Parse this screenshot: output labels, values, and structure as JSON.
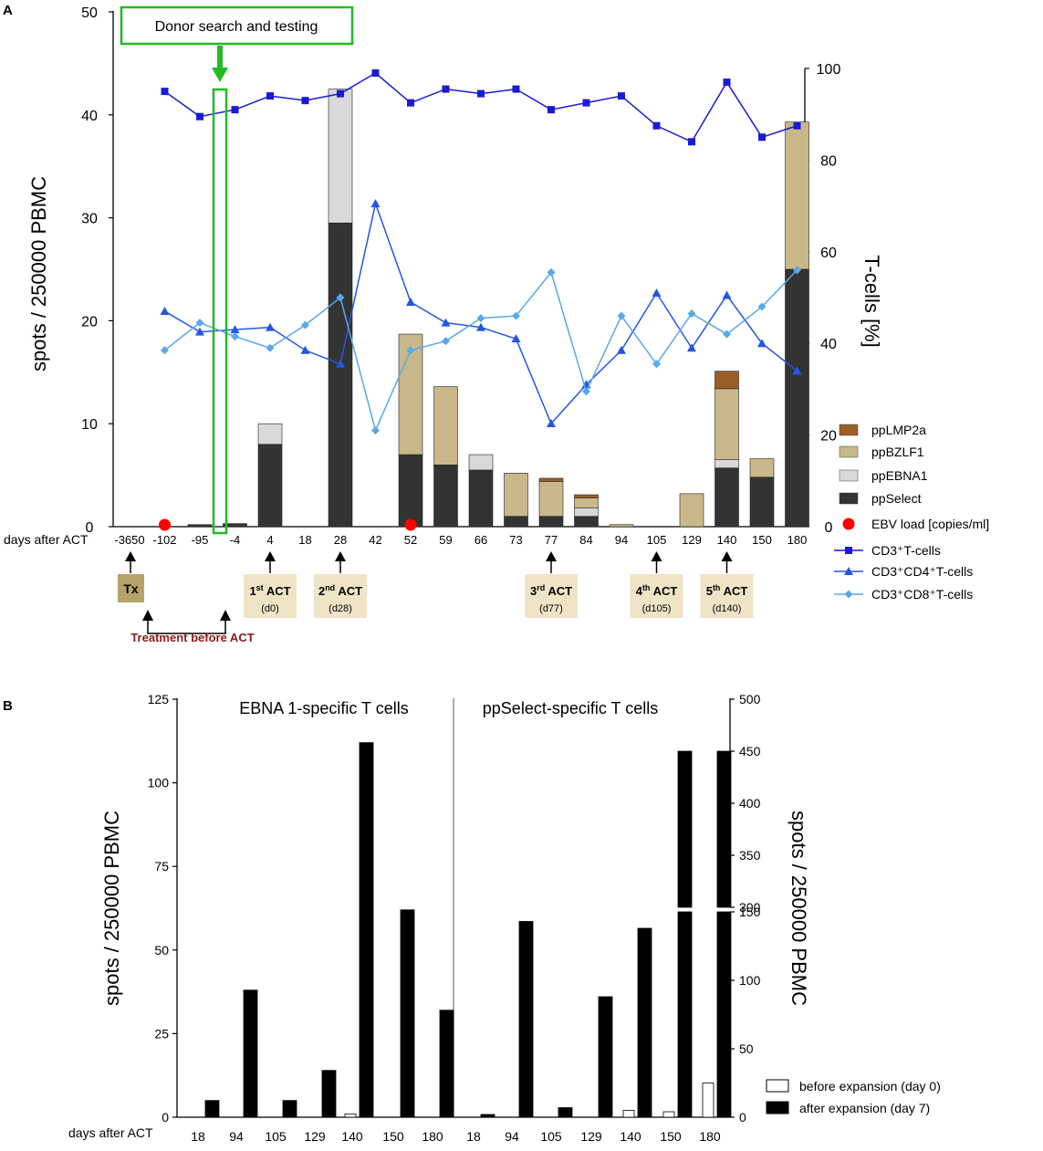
{
  "panel_a": {
    "label": "A",
    "left_axis_title": "spots / 250000 PBMC",
    "right_axis_title": "T-cells [%]",
    "x_label": "days after ACT",
    "donor_box_text": "Donor search and testing",
    "tx_label": "Tx",
    "treatment_label": "Treatment before ACT",
    "act_boxes": [
      {
        "num": "1",
        "sup": "st",
        "word": " ACT",
        "day": "(d0)",
        "pos": 4
      },
      {
        "num": "2",
        "sup": "nd",
        "word": " ACT",
        "day": "(d28)",
        "pos": 6
      },
      {
        "num": "3",
        "sup": "rd",
        "word": " ACT",
        "day": "(d77)",
        "pos": 11
      },
      {
        "num": "4",
        "sup": "th",
        "word": " ACT",
        "day": "(d105)",
        "pos": 14
      },
      {
        "num": "5",
        "sup": "th",
        "word": " ACT",
        "day": "(d140)",
        "pos": 16
      }
    ],
    "legend": [
      {
        "label": "ppLMP2a",
        "color": "#9b5e26",
        "kind": "swatch"
      },
      {
        "label": "ppBZLF1",
        "color": "#c9b88a",
        "kind": "swatch"
      },
      {
        "label": "ppEBNA1",
        "color": "#d9d9d9",
        "kind": "swatch"
      },
      {
        "label": "ppSelect",
        "color": "#333333",
        "kind": "swatch"
      },
      {
        "label": "EBV load [copies/ml]",
        "color": "#ff0000",
        "kind": "dot"
      },
      {
        "label": "CD3⁺T-cells",
        "color": "#1a1ad6",
        "kind": "square"
      },
      {
        "label": "CD3⁺CD4⁺T-cells",
        "color": "#2457e0",
        "kind": "triangle"
      },
      {
        "label": "CD3⁺CD8⁺T-cells",
        "color": "#5aa7ea",
        "kind": "diamond"
      }
    ]
  },
  "panel_b": {
    "label": "B",
    "left_axis_title": "spots / 250000 PBMC",
    "right_axis_title": "spots / 250000 PBMC",
    "x_label": "days after ACT",
    "left_title": "EBNA 1-specific T cells",
    "right_title": "ppSelect-specific T cells",
    "legend": [
      {
        "label": "before expansion (day 0)",
        "color": "#ffffff"
      },
      {
        "label": "after expansion (day 7)",
        "color": "#000000"
      }
    ]
  },
  "chart_data": [
    {
      "type": "bar",
      "title": "A",
      "xlabel": "days after ACT",
      "ylabel": "spots / 250000 PBMC",
      "ylim": [
        0,
        50
      ],
      "y_ticks": [
        0,
        10,
        20,
        30,
        40,
        50
      ],
      "y2label": "T-cells [%]",
      "y2lim": [
        0,
        100
      ],
      "y2_ticks": [
        0,
        20,
        40,
        60,
        80,
        100
      ],
      "categories": [
        "-3650",
        "-102",
        "-95",
        "-4",
        "4",
        "18",
        "28",
        "42",
        "52",
        "59",
        "66",
        "73",
        "77",
        "84",
        "94",
        "105",
        "129",
        "140",
        "150",
        "180"
      ],
      "series": [
        {
          "name": "ppSelect",
          "kind": "stacked-bar",
          "color": "#333333",
          "values": [
            0,
            0,
            0.2,
            0.3,
            8,
            0,
            29.5,
            0,
            7,
            6,
            5.5,
            1,
            1,
            1,
            0,
            0,
            0,
            5.7,
            4.8,
            25
          ]
        },
        {
          "name": "ppEBNA1",
          "kind": "stacked-bar",
          "color": "#d9d9d9",
          "values": [
            0,
            0,
            0,
            0,
            2,
            0,
            13,
            0,
            0,
            0,
            1.5,
            0,
            0,
            0.8,
            0,
            0,
            0,
            0.8,
            0,
            0
          ]
        },
        {
          "name": "ppBZLF1",
          "kind": "stacked-bar",
          "color": "#c9b88a",
          "values": [
            0,
            0,
            0,
            0,
            0,
            0,
            0,
            0,
            11.7,
            7.6,
            0,
            4.2,
            3.4,
            1,
            0.2,
            0,
            3.2,
            6.9,
            1.8,
            14.3
          ]
        },
        {
          "name": "ppLMP2a",
          "kind": "stacked-bar",
          "color": "#9b5e26",
          "values": [
            0,
            0,
            0,
            0,
            0,
            0,
            0,
            0,
            0,
            0,
            0,
            0,
            0.3,
            0.3,
            0,
            0,
            0,
            1.7,
            0,
            0
          ]
        },
        {
          "name": "CD3⁺T-cells",
          "kind": "line",
          "axis": "right",
          "color": "#1a1ad6",
          "values": [
            null,
            95,
            89.5,
            91,
            94,
            93,
            94.5,
            99,
            92.5,
            95.5,
            94.5,
            95.5,
            91,
            92.5,
            94,
            87.5,
            84,
            97,
            85,
            87.5
          ]
        },
        {
          "name": "CD3⁺CD4⁺T-cells",
          "kind": "line",
          "axis": "right",
          "color": "#2457e0",
          "values": [
            null,
            47,
            42.5,
            43,
            43.5,
            38.5,
            35.5,
            70.5,
            49,
            44.5,
            43.5,
            41,
            22.5,
            31,
            38.5,
            51,
            39,
            50.5,
            40,
            34
          ]
        },
        {
          "name": "CD3⁺CD8⁺T-cells",
          "kind": "line",
          "axis": "right",
          "color": "#5aa7ea",
          "values": [
            null,
            38.5,
            44.5,
            41.5,
            39,
            44,
            50,
            21,
            38.5,
            40.5,
            45.5,
            46,
            55.5,
            29.5,
            46,
            35.5,
            46.5,
            42,
            48,
            56
          ]
        },
        {
          "name": "EBV load [copies/ml]",
          "kind": "markers",
          "color": "#ff0000",
          "days": [
            "-102",
            "52"
          ]
        }
      ]
    },
    {
      "type": "bar",
      "title": "EBNA 1-specific T cells",
      "xlabel": "days after ACT",
      "ylabel": "spots / 250000 PBMC",
      "ylim": [
        0,
        125
      ],
      "y_ticks": [
        0,
        25,
        50,
        75,
        100,
        125
      ],
      "categories": [
        "18",
        "94",
        "105",
        "129",
        "140",
        "150",
        "180"
      ],
      "series": [
        {
          "name": "before expansion (day 0)",
          "values": [
            0,
            0,
            0,
            0,
            1,
            0,
            0
          ]
        },
        {
          "name": "after expansion (day 7)",
          "values": [
            5,
            38,
            5,
            14,
            112,
            62,
            32
          ]
        }
      ]
    },
    {
      "type": "bar",
      "title": "ppSelect-specific T cells",
      "xlabel": "days after ACT",
      "ylabel": "spots / 250000 PBMC",
      "ylim": [
        0,
        500
      ],
      "axis_break": [
        150,
        300
      ],
      "y_ticks": [
        0,
        50,
        100,
        150,
        300,
        350,
        400,
        450,
        500
      ],
      "categories": [
        "18",
        "94",
        "105",
        "129",
        "140",
        "150",
        "180"
      ],
      "series": [
        {
          "name": "before expansion (day 0)",
          "values": [
            0,
            0,
            0,
            0,
            5,
            4,
            25
          ]
        },
        {
          "name": "after expansion (day 7)",
          "values": [
            2,
            143,
            7,
            88,
            138,
            450,
            450
          ]
        }
      ]
    }
  ]
}
